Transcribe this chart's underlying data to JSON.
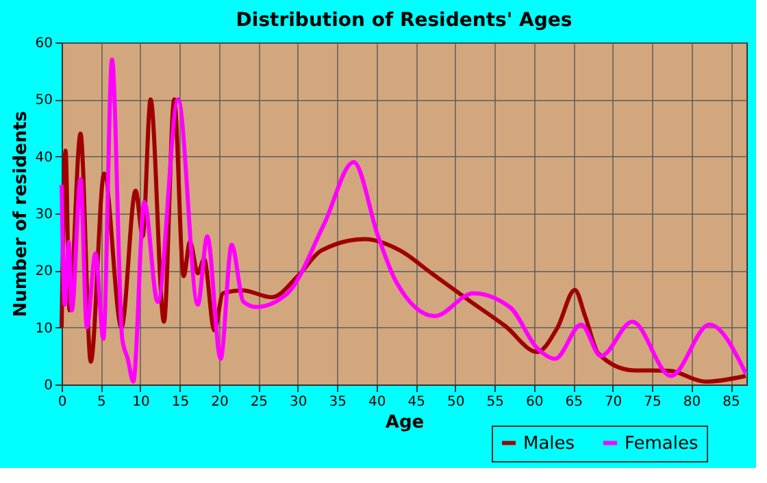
{
  "chart_data": {
    "type": "line",
    "title": "Distribution of Residents' Ages",
    "xlabel": "Age",
    "ylabel": "Number of residents",
    "xlim": [
      0,
      87
    ],
    "ylim": [
      0,
      60
    ],
    "xticks": [
      0,
      5,
      10,
      15,
      20,
      25,
      30,
      35,
      40,
      45,
      50,
      55,
      60,
      65,
      70,
      75,
      80,
      85
    ],
    "yticks": [
      0,
      10,
      20,
      30,
      40,
      50,
      60
    ],
    "grid": true,
    "legend": "bottom right",
    "line_style": "solid",
    "marker": "none",
    "series": [
      {
        "name": "Males",
        "color": "#a00000",
        "x": [
          0,
          0.5,
          1,
          2.4,
          3.7,
          5.4,
          7.6,
          9.4,
          10.3,
          11.3,
          13,
          14.3,
          15.5,
          16.3,
          17.3,
          18.1,
          19.4,
          20.5,
          23,
          26.7,
          30,
          33,
          38.5,
          43,
          47,
          52,
          56.4,
          60.4,
          63,
          65.2,
          66.5,
          68.2,
          72.5,
          77.2,
          81.8,
          86.9
        ],
        "values": [
          10,
          41,
          13,
          44,
          4,
          37,
          10,
          34,
          26,
          50,
          11,
          50,
          19,
          25,
          19.5,
          22,
          9.5,
          16,
          16.5,
          15.3,
          19,
          23.5,
          25.5,
          23.5,
          19.5,
          14.5,
          10.2,
          5.7,
          10,
          16.6,
          12,
          5.4,
          2.5,
          2.4,
          0.5,
          1.5
        ]
      },
      {
        "name": "Females",
        "color": "#ff00ff",
        "x": [
          0,
          0.4,
          0.9,
          1.3,
          2.4,
          3.2,
          4.3,
          5.3,
          6.4,
          7.7,
          8.4,
          9.1,
          10.5,
          12.2,
          14.8,
          17.3,
          18.5,
          20.2,
          21.6,
          23.1,
          24.7,
          28.7,
          33.3,
          37.1,
          40.2,
          42.5,
          47.4,
          52.3,
          57,
          60.4,
          62.7,
          66,
          68.5,
          72.5,
          77.4,
          82.3,
          86.9
        ],
        "values": [
          35,
          14,
          25,
          13,
          36,
          10,
          23,
          8,
          57,
          8,
          4.5,
          0.5,
          32,
          14.5,
          50,
          14,
          26,
          4.5,
          24.5,
          14.5,
          13.6,
          16,
          28,
          39,
          26,
          18,
          12,
          16,
          13.5,
          6.4,
          4.5,
          10.5,
          5,
          11,
          1.5,
          10.5,
          2
        ]
      }
    ]
  }
}
